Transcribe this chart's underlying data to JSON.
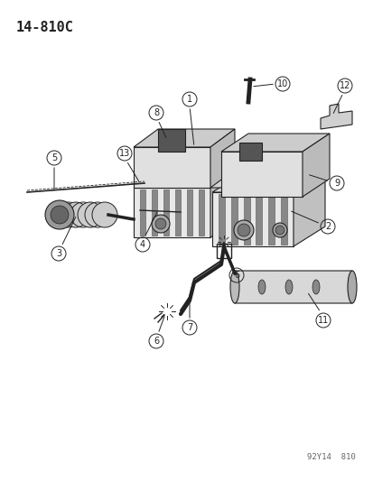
{
  "title_code": "14-810C",
  "watermark": "92Y14  810",
  "bg_color": "#ffffff",
  "fig_width": 4.14,
  "fig_height": 5.33,
  "dpi": 100,
  "title_fontsize": 11,
  "label_fontsize": 7.5,
  "watermark_fontsize": 6.5
}
